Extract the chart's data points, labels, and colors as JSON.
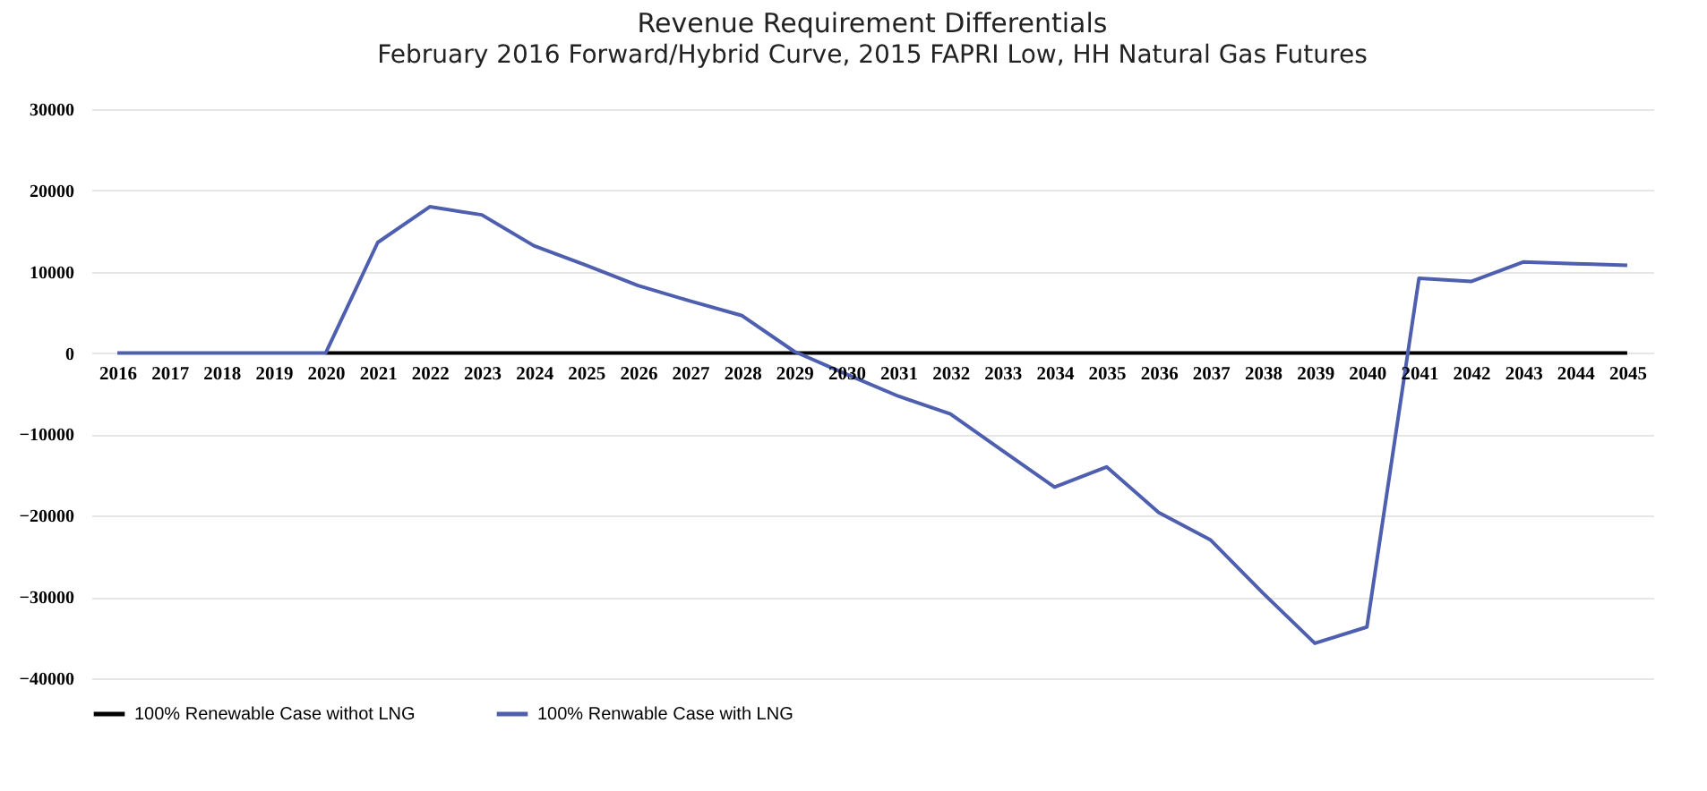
{
  "chart_data": {
    "type": "line",
    "title": "Revenue Requirement Differentials",
    "subtitle": "February 2016 Forward/Hybrid Curve, 2015 FAPRI Low, HH Natural Gas Futures",
    "categories": [
      "2016",
      "2017",
      "2018",
      "2019",
      "2020",
      "2021",
      "2022",
      "2023",
      "2024",
      "2025",
      "2026",
      "2027",
      "2028",
      "2029",
      "2030",
      "2031",
      "2032",
      "2033",
      "2034",
      "2035",
      "2036",
      "2037",
      "2038",
      "2039",
      "2040",
      "2041",
      "2042",
      "2043",
      "2044",
      "2045"
    ],
    "series": [
      {
        "name": "100% Renewable Case withot LNG",
        "color": "#000000",
        "values": [
          null,
          null,
          null,
          null,
          0,
          0,
          0,
          0,
          0,
          0,
          0,
          0,
          0,
          0,
          0,
          0,
          0,
          0,
          0,
          0,
          0,
          0,
          0,
          0,
          0,
          0,
          0,
          0,
          0,
          0
        ]
      },
      {
        "name": "100% Renwable Case with LNG",
        "color": "#4f5fb0",
        "values": [
          0,
          0,
          0,
          0,
          0,
          13600,
          18000,
          17000,
          13200,
          10800,
          8300,
          6400,
          4600,
          200,
          -2600,
          -5300,
          -7500,
          -12000,
          -16500,
          -14000,
          -19600,
          -23000,
          -29500,
          -35700,
          -33700,
          9200,
          8800,
          11200,
          11000,
          10800
        ]
      }
    ],
    "ylim": [
      -40000,
      30000
    ],
    "yticks": [
      -40000,
      -30000,
      -20000,
      -10000,
      0,
      10000,
      20000,
      30000
    ],
    "grid": "y",
    "legend": "bottom",
    "line_style": "solid",
    "marker": "none"
  }
}
